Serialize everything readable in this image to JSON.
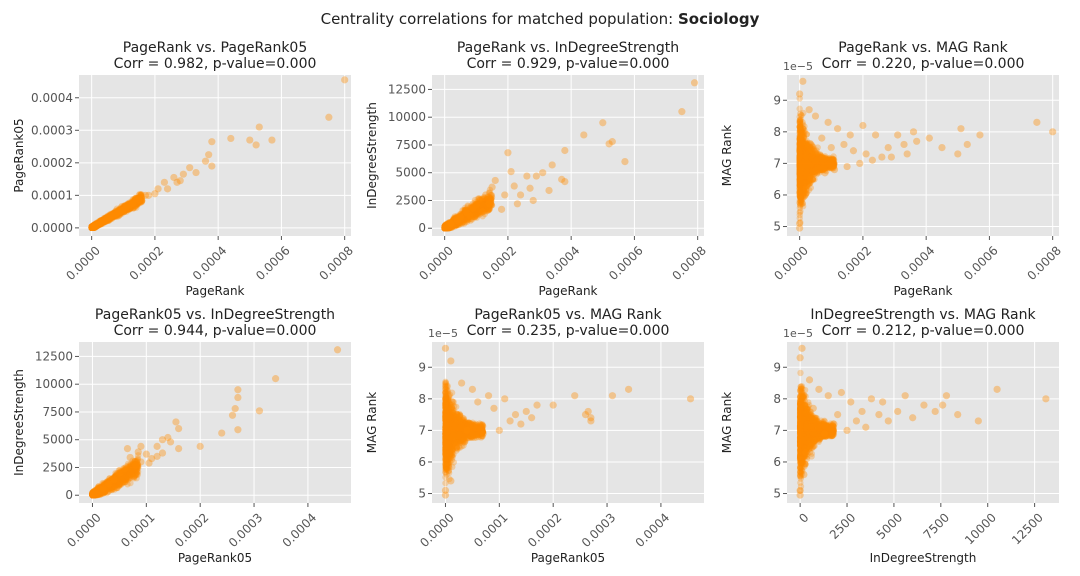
{
  "figure": {
    "suptitle_prefix": "Centrality correlations for matched population: ",
    "suptitle_bold": "Sociology"
  },
  "colors": {
    "point": "#ff8c00",
    "panel_bg": "#e5e5e5",
    "grid": "#ffffff",
    "text": "#222222",
    "tick_text": "#555555"
  },
  "chart_data": [
    {
      "type": "scatter",
      "title": "PageRank vs. PageRank05",
      "subtitle": "Corr = 0.982, p-value=0.000",
      "xlabel": "PageRank",
      "ylabel": "PageRank05",
      "xlim": [
        -4e-05,
        0.00082
      ],
      "ylim": [
        -2.5e-05,
        0.00047
      ],
      "xticks": [
        0,
        0.0002,
        0.0004,
        0.0006,
        0.0008
      ],
      "xticklabels": [
        "0.0000",
        "0.0002",
        "0.0004",
        "0.0006",
        "0.0008"
      ],
      "yticks": [
        0,
        0.0001,
        0.0002,
        0.0003,
        0.0004
      ],
      "yticklabels": [
        "0.0000",
        "0.0001",
        "0.0002",
        "0.0003",
        "0.0004"
      ],
      "y_offset_label": "",
      "points": [
        [
          0.0008,
          0.000455
        ],
        [
          0.00075,
          0.00034
        ],
        [
          0.00053,
          0.00031
        ],
        [
          0.00052,
          0.000255
        ],
        [
          0.00057,
          0.00027
        ],
        [
          0.0005,
          0.00027
        ],
        [
          0.00044,
          0.000275
        ],
        [
          0.00038,
          0.000265
        ],
        [
          0.00037,
          0.000225
        ],
        [
          0.00036,
          0.000205
        ],
        [
          0.00038,
          0.00019
        ],
        [
          0.00031,
          0.000185
        ],
        [
          0.00033,
          0.00017
        ],
        [
          0.00026,
          0.000155
        ],
        [
          0.00027,
          0.00014
        ],
        [
          0.00024,
          0.00012
        ],
        [
          0.00021,
          0.00012
        ],
        [
          0.0002,
          0.000105
        ],
        [
          0.00018,
          0.0001
        ],
        [
          0.00015,
          8.5e-05
        ],
        [
          0.00013,
          7.5e-05
        ],
        [
          0.00012,
          7e-05
        ],
        [
          0.0001,
          5.5e-05
        ],
        [
          9e-05,
          5e-05
        ],
        [
          7e-05,
          4e-05
        ],
        [
          5e-05,
          3e-05
        ],
        [
          4e-05,
          2e-05
        ],
        [
          2e-05,
          1e-05
        ],
        [
          1e-05,
          5e-06
        ],
        [
          0.00029,
          0.000165
        ],
        [
          0.00028,
          0.000145
        ],
        [
          0.00023,
          0.00014
        ],
        [
          0.00017,
          0.0001
        ],
        [
          0.00014,
          9e-05
        ],
        [
          0.00011,
          6.5e-05
        ],
        [
          8e-05,
          4.5e-05
        ],
        [
          6e-05,
          3.5e-05
        ],
        [
          3e-05,
          1.5e-05
        ]
      ],
      "dense": {
        "xmin": 0,
        "xmax": 0.00016,
        "slope": 0.57,
        "spread": 1.2e-05,
        "n": 1300
      }
    },
    {
      "type": "scatter",
      "title": "PageRank vs. InDegreeStrength",
      "subtitle": "Corr = 0.929, p-value=0.000",
      "xlabel": "PageRank",
      "ylabel": "InDegreeStrength",
      "xlim": [
        -4e-05,
        0.00082
      ],
      "ylim": [
        -700,
        13800
      ],
      "xticks": [
        0,
        0.0002,
        0.0004,
        0.0006,
        0.0008
      ],
      "xticklabels": [
        "0.0000",
        "0.0002",
        "0.0004",
        "0.0006",
        "0.0008"
      ],
      "yticks": [
        0,
        2500,
        5000,
        7500,
        10000,
        12500
      ],
      "yticklabels": [
        "0",
        "2500",
        "5000",
        "7500",
        "10000",
        "12500"
      ],
      "y_offset_label": "",
      "points": [
        [
          0.00079,
          13100
        ],
        [
          0.00075,
          10500
        ],
        [
          0.0005,
          9500
        ],
        [
          0.00053,
          7800
        ],
        [
          0.00052,
          7600
        ],
        [
          0.00057,
          6000
        ],
        [
          0.00044,
          8400
        ],
        [
          0.00038,
          7000
        ],
        [
          0.00038,
          4200
        ],
        [
          0.00037,
          4400
        ],
        [
          0.00034,
          5700
        ],
        [
          0.00031,
          5000
        ],
        [
          0.00029,
          4700
        ],
        [
          0.00027,
          3600
        ],
        [
          0.00024,
          3000
        ],
        [
          0.00021,
          5100
        ],
        [
          0.0002,
          6800
        ],
        [
          0.00019,
          3000
        ],
        [
          0.00016,
          4300
        ],
        [
          0.00015,
          3700
        ],
        [
          0.00013,
          3000
        ],
        [
          0.00011,
          2600
        ],
        [
          0.0001,
          2100
        ],
        [
          9e-05,
          1800
        ],
        [
          7e-05,
          1400
        ],
        [
          5e-05,
          1000
        ],
        [
          4e-05,
          700
        ],
        [
          2e-05,
          400
        ],
        [
          0.00028,
          2500
        ],
        [
          0.00026,
          4700
        ],
        [
          0.00023,
          2200
        ],
        [
          0.00018,
          1700
        ],
        [
          0.00014,
          2200
        ],
        [
          0.00012,
          1500
        ],
        [
          8e-05,
          1100
        ],
        [
          0.00033,
          3400
        ],
        [
          0.00022,
          3800
        ]
      ],
      "dense": {
        "xmin": 0,
        "xmax": 0.00015,
        "slope": 17000000,
        "spread": 700,
        "n": 1300
      }
    },
    {
      "type": "scatter",
      "title": "PageRank vs. MAG Rank",
      "subtitle": "Corr = 0.220, p-value=0.000",
      "xlabel": "PageRank",
      "ylabel": "MAG Rank",
      "xlim": [
        -4e-05,
        0.00082
      ],
      "ylim": [
        4.7,
        9.8
      ],
      "xticks": [
        0,
        0.0002,
        0.0004,
        0.0006,
        0.0008
      ],
      "xticklabels": [
        "0.0000",
        "0.0002",
        "0.0004",
        "0.0006",
        "0.0008"
      ],
      "yticks": [
        5,
        6,
        7,
        8,
        9
      ],
      "yticklabels": [
        "5",
        "6",
        "7",
        "8",
        "9"
      ],
      "y_offset_label": "1e−5",
      "points": [
        [
          0.0008,
          8.0
        ],
        [
          0.00075,
          8.3
        ],
        [
          0.00057,
          7.9
        ],
        [
          0.00053,
          7.6
        ],
        [
          0.00051,
          8.1
        ],
        [
          0.0005,
          7.3
        ],
        [
          0.00045,
          7.5
        ],
        [
          0.00041,
          7.8
        ],
        [
          0.00037,
          7.7
        ],
        [
          0.00036,
          8.0
        ],
        [
          0.00034,
          7.3
        ],
        [
          0.00033,
          7.6
        ],
        [
          0.00031,
          7.9
        ],
        [
          0.00029,
          7.2
        ],
        [
          0.00028,
          7.5
        ],
        [
          0.00026,
          7.2
        ],
        [
          0.00024,
          7.9
        ],
        [
          0.00023,
          7.1
        ],
        [
          0.00021,
          7.3
        ],
        [
          0.0002,
          8.2
        ],
        [
          0.00019,
          7.0
        ],
        [
          0.00017,
          7.4
        ],
        [
          0.00016,
          7.9
        ],
        [
          0.00015,
          6.9
        ],
        [
          0.00014,
          7.6
        ],
        [
          0.00012,
          8.1
        ],
        [
          0.00011,
          6.8
        ],
        [
          0.0001,
          7.5
        ],
        [
          9e-05,
          8.3
        ],
        [
          8e-05,
          6.7
        ],
        [
          7e-05,
          7.8
        ],
        [
          5e-05,
          8.5
        ],
        [
          4e-05,
          6.5
        ],
        [
          3e-05,
          8.7
        ],
        [
          2e-05,
          6.2
        ],
        [
          1e-05,
          9.6
        ],
        [
          0.0,
          9.2
        ],
        [
          0.0,
          4.95
        ],
        [
          0.0,
          5.1
        ]
      ],
      "dense": {
        "xmin": 0,
        "xmax": 0.00011,
        "ymode": "funnel",
        "n": 1500
      }
    },
    {
      "type": "scatter",
      "title": "PageRank05 vs. InDegreeStrength",
      "subtitle": "Corr = 0.944, p-value=0.000",
      "xlabel": "PageRank05",
      "ylabel": "InDegreeStrength",
      "xlim": [
        -2.5e-05,
        0.00048
      ],
      "ylim": [
        -700,
        13800
      ],
      "xticks": [
        0,
        0.0001,
        0.0002,
        0.0003,
        0.0004
      ],
      "xticklabels": [
        "0.0000",
        "0.0001",
        "0.0002",
        "0.0003",
        "0.0004"
      ],
      "yticks": [
        0,
        2500,
        5000,
        7500,
        10000,
        12500
      ],
      "yticklabels": [
        "0",
        "2500",
        "5000",
        "7500",
        "10000",
        "12500"
      ],
      "y_offset_label": "",
      "points": [
        [
          0.000455,
          13100
        ],
        [
          0.00034,
          10500
        ],
        [
          0.00027,
          9500
        ],
        [
          0.00027,
          8800
        ],
        [
          0.000265,
          7800
        ],
        [
          0.00031,
          7600
        ],
        [
          0.00026,
          7200
        ],
        [
          0.00027,
          5900
        ],
        [
          0.00024,
          5600
        ],
        [
          0.0002,
          4400
        ],
        [
          0.000155,
          6600
        ],
        [
          0.00016,
          6000
        ],
        [
          0.000145,
          4800
        ],
        [
          0.00014,
          5200
        ],
        [
          0.00016,
          4200
        ],
        [
          0.00013,
          5000
        ],
        [
          0.00012,
          4400
        ],
        [
          0.00012,
          3500
        ],
        [
          0.00011,
          3300
        ],
        [
          0.0001,
          3700
        ],
        [
          9e-05,
          4400
        ],
        [
          9e-05,
          3000
        ],
        [
          8e-05,
          2700
        ],
        [
          7e-05,
          3400
        ],
        [
          6e-05,
          2400
        ],
        [
          5e-05,
          2000
        ],
        [
          4e-05,
          1400
        ],
        [
          3e-05,
          1000
        ],
        [
          2e-05,
          600
        ],
        [
          0.00013,
          3800
        ],
        [
          0.000105,
          2900
        ],
        [
          8.5e-05,
          3900
        ],
        [
          6.5e-05,
          4200
        ]
      ],
      "dense": {
        "xmin": 0,
        "xmax": 8.5e-05,
        "slope": 30000000,
        "spread": 750,
        "n": 1300
      }
    },
    {
      "type": "scatter",
      "title": "PageRank05 vs. MAG Rank",
      "subtitle": "Corr = 0.235, p-value=0.000",
      "xlabel": "PageRank05",
      "ylabel": "MAG Rank",
      "xlim": [
        -2.5e-05,
        0.00048
      ],
      "ylim": [
        4.7,
        9.8
      ],
      "xticks": [
        0,
        0.0001,
        0.0002,
        0.0003,
        0.0004
      ],
      "xticklabels": [
        "0.0000",
        "0.0001",
        "0.0002",
        "0.0003",
        "0.0004"
      ],
      "yticks": [
        5,
        6,
        7,
        8,
        9
      ],
      "yticklabels": [
        "5",
        "6",
        "7",
        "8",
        "9"
      ],
      "y_offset_label": "1e−5",
      "points": [
        [
          0.000455,
          8.0
        ],
        [
          0.00034,
          8.3
        ],
        [
          0.00031,
          8.1
        ],
        [
          0.00027,
          7.3
        ],
        [
          0.000265,
          7.6
        ],
        [
          0.00027,
          7.4
        ],
        [
          0.00026,
          7.5
        ],
        [
          0.00024,
          8.1
        ],
        [
          0.0002,
          7.8
        ],
        [
          0.00017,
          7.8
        ],
        [
          0.00016,
          7.4
        ],
        [
          0.00015,
          7.6
        ],
        [
          0.00014,
          7.2
        ],
        [
          0.00013,
          7.5
        ],
        [
          0.00012,
          7.3
        ],
        [
          0.00011,
          8.0
        ],
        [
          0.0001,
          7.0
        ],
        [
          9e-05,
          7.7
        ],
        [
          8e-05,
          8.1
        ],
        [
          7e-05,
          6.9
        ],
        [
          6e-05,
          7.9
        ],
        [
          5e-05,
          8.3
        ],
        [
          4e-05,
          7.0
        ],
        [
          3e-05,
          8.5
        ],
        [
          2e-05,
          6.5
        ],
        [
          1e-05,
          9.2
        ],
        [
          0.0,
          9.6
        ],
        [
          0.0,
          4.95
        ],
        [
          0.0,
          5.1
        ],
        [
          1e-05,
          5.4
        ]
      ],
      "dense": {
        "xmin": 0,
        "xmax": 7e-05,
        "ymode": "funnel",
        "n": 1500
      }
    },
    {
      "type": "scatter",
      "title": "InDegreeStrength vs. MAG Rank",
      "subtitle": "Corr = 0.212, p-value=0.000",
      "xlabel": "InDegreeStrength",
      "ylabel": "MAG Rank",
      "xlim": [
        -700,
        13800
      ],
      "ylim": [
        4.7,
        9.8
      ],
      "xticks": [
        0,
        2500,
        5000,
        7500,
        10000,
        12500
      ],
      "xticklabels": [
        "0",
        "2500",
        "5000",
        "7500",
        "10000",
        "12500"
      ],
      "yticks": [
        5,
        6,
        7,
        8,
        9
      ],
      "yticklabels": [
        "5",
        "6",
        "7",
        "8",
        "9"
      ],
      "y_offset_label": "1e−5",
      "points": [
        [
          13100,
          8.0
        ],
        [
          10500,
          8.3
        ],
        [
          9500,
          7.3
        ],
        [
          8400,
          7.5
        ],
        [
          7800,
          8.1
        ],
        [
          7600,
          7.8
        ],
        [
          7200,
          7.6
        ],
        [
          6600,
          7.8
        ],
        [
          6000,
          7.4
        ],
        [
          5600,
          8.1
        ],
        [
          5200,
          7.6
        ],
        [
          4700,
          7.3
        ],
        [
          4400,
          7.9
        ],
        [
          4200,
          7.5
        ],
        [
          3800,
          8.0
        ],
        [
          3500,
          7.1
        ],
        [
          3300,
          7.6
        ],
        [
          3000,
          7.3
        ],
        [
          2700,
          7.9
        ],
        [
          2500,
          7.0
        ],
        [
          2200,
          8.2
        ],
        [
          2000,
          7.5
        ],
        [
          1800,
          7.2
        ],
        [
          1500,
          8.1
        ],
        [
          1300,
          6.9
        ],
        [
          1000,
          8.3
        ],
        [
          700,
          7.7
        ],
        [
          500,
          8.6
        ],
        [
          300,
          6.3
        ],
        [
          100,
          9.6
        ],
        [
          0,
          9.3
        ],
        [
          0,
          4.95
        ],
        [
          0,
          5.1
        ],
        [
          200,
          5.6
        ]
      ],
      "dense": {
        "xmin": 0,
        "xmax": 1800,
        "ymode": "funnel",
        "n": 1500
      }
    }
  ]
}
